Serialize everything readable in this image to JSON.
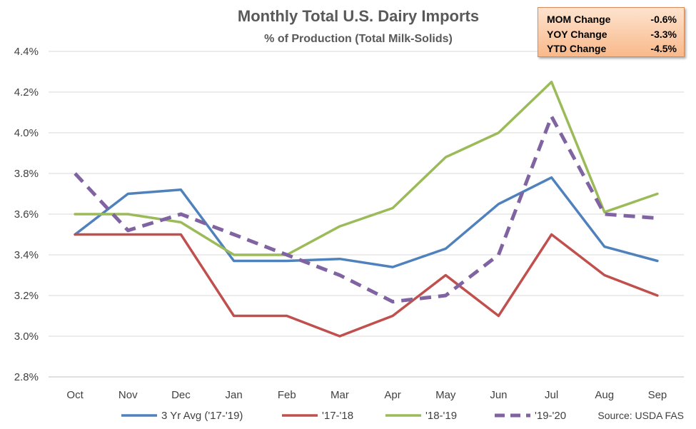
{
  "chart_data": {
    "type": "line",
    "title": "Monthly Total U.S. Dairy Imports",
    "subtitle": "% of Production  (Total Milk-Solids)",
    "categories": [
      "Oct",
      "Nov",
      "Dec",
      "Jan",
      "Feb",
      "Mar",
      "Apr",
      "May",
      "Jun",
      "Jul",
      "Aug",
      "Sep"
    ],
    "ylim": [
      2.8,
      4.4
    ],
    "yticks": [
      "2.8%",
      "3.0%",
      "3.2%",
      "3.4%",
      "3.6%",
      "3.8%",
      "4.0%",
      "4.2%",
      "4.4%"
    ],
    "grid": true,
    "legend_position": "bottom",
    "series": [
      {
        "name": "3 Yr Avg ('17-'19)",
        "color": "#4f81bd",
        "dashed": false,
        "values": [
          3.5,
          3.7,
          3.72,
          3.37,
          3.37,
          3.38,
          3.34,
          3.43,
          3.65,
          3.78,
          3.44,
          3.37
        ]
      },
      {
        "name": "'17-'18",
        "color": "#c0504d",
        "dashed": false,
        "values": [
          3.5,
          3.5,
          3.5,
          3.1,
          3.1,
          3.0,
          3.1,
          3.3,
          3.1,
          3.5,
          3.3,
          3.2
        ]
      },
      {
        "name": "'18-'19",
        "color": "#9bbb59",
        "dashed": false,
        "values": [
          3.6,
          3.6,
          3.56,
          3.4,
          3.4,
          3.54,
          3.63,
          3.88,
          4.0,
          4.25,
          3.61,
          3.7
        ]
      },
      {
        "name": "'19-'20",
        "color": "#8064a2",
        "dashed": true,
        "values": [
          3.8,
          3.52,
          3.6,
          3.5,
          3.4,
          3.3,
          3.17,
          3.2,
          3.4,
          4.08,
          3.6,
          3.58
        ]
      }
    ],
    "source": "Source: USDA FAS"
  },
  "stats": [
    {
      "label": "MOM Change",
      "value": "-0.6%"
    },
    {
      "label": "YOY Change",
      "value": "-3.3%"
    },
    {
      "label": "YTD Change",
      "value": "-4.5%"
    }
  ]
}
